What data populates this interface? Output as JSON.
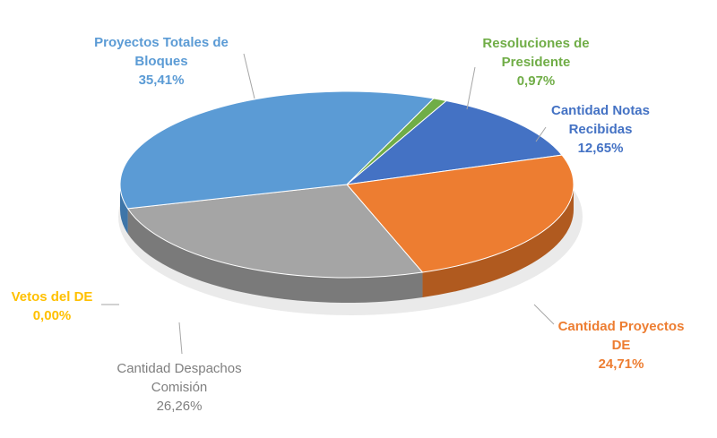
{
  "chart_data": {
    "type": "pie",
    "style": "3d-pie",
    "slices": [
      {
        "name": "Cantidad Notas Recibidas",
        "label_lines": [
          "Cantidad Notas",
          "Recibidas"
        ],
        "value": 12.65,
        "value_text": "12,65%",
        "color": "#4472C4",
        "side_color": "#2f5597",
        "label_color": "#4472C4"
      },
      {
        "name": "Cantidad Proyectos DE",
        "label_lines": [
          "Cantidad Proyectos",
          "DE"
        ],
        "value": 24.71,
        "value_text": "24,71%",
        "color": "#ED7D31",
        "side_color": "#b05a1f",
        "label_color": "#ED7D31"
      },
      {
        "name": "Cantidad Despachos Comisión",
        "label_lines": [
          "Cantidad Despachos",
          "Comisión"
        ],
        "value": 26.26,
        "value_text": "26,26%",
        "color": "#A5A5A5",
        "side_color": "#7a7a7a",
        "label_color": "#7f7f7f"
      },
      {
        "name": "Vetos del DE",
        "label_lines": [
          "Vetos del DE"
        ],
        "value": 0.0,
        "value_text": "0,00%",
        "color": "#FFC000",
        "side_color": "#c09000",
        "label_color": "#FFC000"
      },
      {
        "name": "Proyectos Totales de Bloques",
        "label_lines": [
          "Proyectos Totales de",
          "Bloques"
        ],
        "value": 35.41,
        "value_text": "35,41%",
        "color": "#5B9BD5",
        "side_color": "#3e75a8",
        "label_color": "#5B9BD5"
      },
      {
        "name": "Resoluciones de Presidente",
        "label_lines": [
          "Resoluciones de",
          "Presidente"
        ],
        "value": 0.97,
        "value_text": "0,97%",
        "color": "#70AD47",
        "side_color": "#4f7f30",
        "label_color": "#70AD47"
      }
    ],
    "legend": "none",
    "data_labels": "outside-with-leader-lines"
  }
}
